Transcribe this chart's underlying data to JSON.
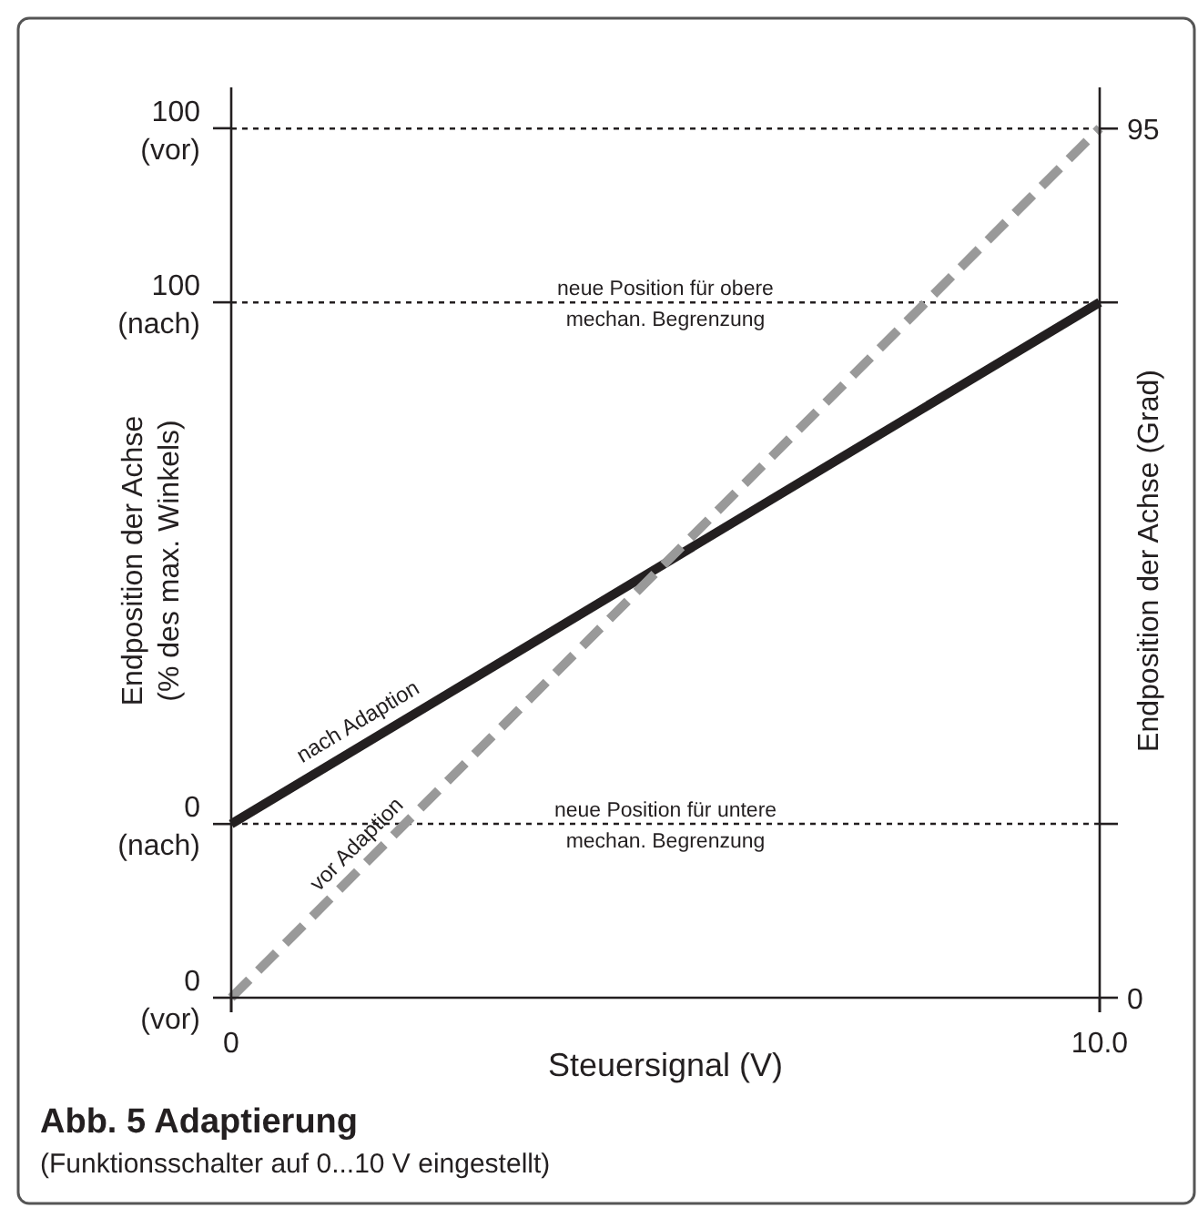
{
  "chart_data": {
    "type": "line",
    "title": "Abb. 5  Adaptierung",
    "subtitle": "(Funktionsschalter auf 0...10 V eingestellt)",
    "xlabel": "Steuersignal (V)",
    "ylabel": "Endposition der Achse\n(% des max. Winkels)",
    "y2label": "Endposition der Achse (Grad)",
    "x": [
      0,
      10
    ],
    "xlim": [
      0,
      10
    ],
    "xticks": [
      0,
      {
        "value": 10,
        "label": "10.0"
      }
    ],
    "ylim": [
      0,
      104.7
    ],
    "yticks": [
      {
        "value": 0,
        "label": "0\n(vor)"
      },
      {
        "value": 100,
        "label": "100\n(vor)"
      }
    ],
    "y3lim": [
      -33.3,
      141.2
    ],
    "y3ticks": [
      {
        "value": 0,
        "label": "0\n(nach)"
      },
      {
        "value": 100,
        "label": "100\n(nach)"
      }
    ],
    "y2lim": [
      0,
      99.5
    ],
    "y2ticks": [
      0,
      {
        "value": 19,
        "label": null
      },
      {
        "value": 76,
        "label": null
      },
      95
    ],
    "series": [
      {
        "name": "nach Adaption",
        "color": "#231f20",
        "values": [
          0,
          100
        ],
        "line_style": "solid",
        "axis": "y3"
      },
      {
        "name": "vor Adaption",
        "color": "#999999",
        "values": [
          0,
          100
        ],
        "line_style": "dashed",
        "axis": "y"
      }
    ],
    "ref_lines": [
      {
        "axis": "y2",
        "value": 95,
        "label": null,
        "line_style": "dotted",
        "color": "#231f20"
      },
      {
        "axis": "y2",
        "value": 76,
        "label": "neue Position für obere\nmechan. Begrenzung",
        "line_style": "dotted",
        "color": "#231f20"
      },
      {
        "axis": "y2",
        "value": 19,
        "label": "neue Position für untere\nmechan. Begrenzung",
        "line_style": "dotted",
        "color": "#231f20"
      }
    ]
  }
}
